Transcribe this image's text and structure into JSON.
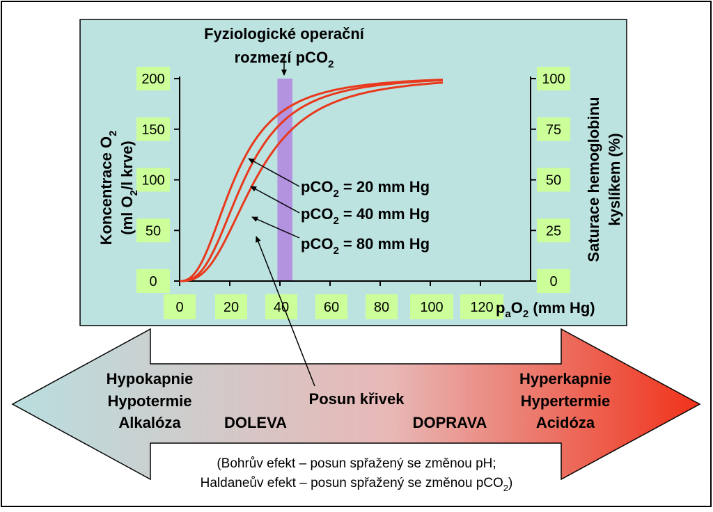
{
  "chart_data": {
    "type": "line",
    "title_line1": "Fyziologické operační",
    "title_line2_main": "rozmezí pCO",
    "title_line2_sub": "2",
    "x_label": {
      "p": "p",
      "a": "a",
      "o": "O",
      "sub2": "2",
      "rest": " (mm Hg)"
    },
    "x_ticks": [
      "0",
      "20",
      "40",
      "60",
      "80",
      "100",
      "120"
    ],
    "x_tick_values": [
      0,
      20,
      40,
      60,
      80,
      100,
      120
    ],
    "xlim": [
      0,
      140
    ],
    "y_left_ticks": [
      "0",
      "50",
      "100",
      "150",
      "200"
    ],
    "y_left_tick_values": [
      0,
      50,
      100,
      150,
      200
    ],
    "ylim_left": [
      0,
      200
    ],
    "y_right_ticks": [
      "0",
      "25",
      "50",
      "75",
      "100"
    ],
    "ylim_right": [
      0,
      100
    ],
    "y_left_label": {
      "line1_main": "Koncentrace O",
      "line1_sub": "2",
      "line2_a": "(ml O",
      "line2_sub": "2",
      "line2_b": "/l krve)"
    },
    "y_right_label": {
      "line1": "Saturace hemoglobinu",
      "line2": "kyslíkem (%)"
    },
    "physiological_band": [
      39,
      45
    ],
    "curve_color": "#e8391c",
    "band_color": "#b393e0",
    "tick_bg_color": "#ccff99",
    "series": [
      {
        "label_a": "pCO",
        "label_sub": "2",
        "label_b": " = 20 mm Hg",
        "p50": 22,
        "n": 2.5,
        "ymax": 203,
        "x_end": 105
      },
      {
        "label_a": "pCO",
        "label_sub": "2",
        "label_b": " = 40 mm Hg",
        "p50": 26,
        "n": 2.7,
        "ymax": 203,
        "x_end": 105
      },
      {
        "label_a": "pCO",
        "label_sub": "2",
        "label_b": " = 80 mm Hg",
        "p50": 30.5,
        "n": 2.7,
        "ymax": 203,
        "x_end": 105
      }
    ]
  },
  "arrow": {
    "shift_label": "Posun křivek",
    "left_direction": "DOLEVA",
    "right_direction": "DOPRAVA",
    "left_conditions": [
      "Hypokapnie",
      "Hypotermie",
      "Alkalóza"
    ],
    "right_conditions": [
      "Hyperkapnie",
      "Hypertermie",
      "Acidóza"
    ],
    "note_line1": "(Bohrův efekt – posun spřažený se změnou pH;",
    "note_line2_a": "Haldaneův efekt – posun spřažený se změnou pCO",
    "note_line2_sub": "2",
    "note_line2_b": ")",
    "left_color": "#b9dedf",
    "right_color": "#f0321a"
  },
  "panel_color": "#bde3e1"
}
